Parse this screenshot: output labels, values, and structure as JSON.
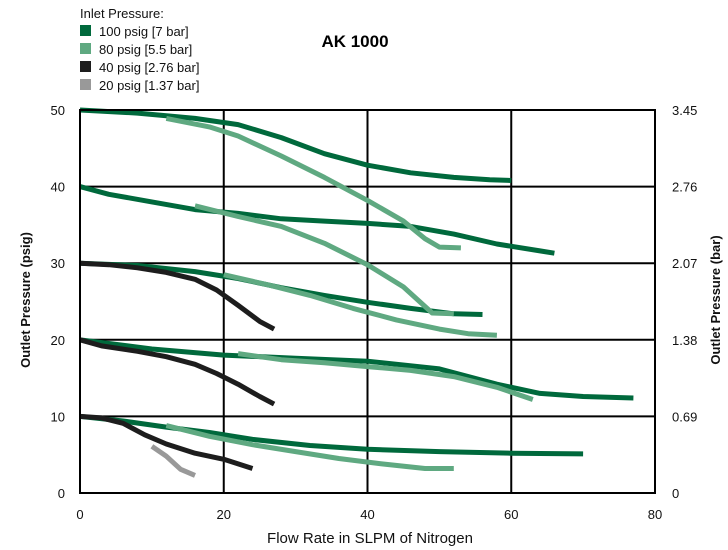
{
  "chart_data": {
    "type": "line",
    "title": "AK 1000",
    "xlabel": "Flow Rate in SLPM of Nitrogen",
    "ylabel": "Outlet Pressure (psig)",
    "y2label": "Outlet Pressure (bar)",
    "xlim": [
      0,
      80
    ],
    "ylim": [
      0,
      50
    ],
    "x_ticks": [
      "0",
      "20",
      "40",
      "60",
      "80"
    ],
    "y_ticks": [
      "0",
      "10",
      "20",
      "30",
      "40",
      "50"
    ],
    "y2_ticks": [
      "0",
      "0.69",
      "1.38",
      "2.07",
      "2.76",
      "3.45"
    ],
    "grid": true,
    "legend_title": "Inlet Pressure:",
    "legend_position": "top-left",
    "series": [
      {
        "name": "100 psig [7 bar]",
        "color": "#00693c",
        "curves": [
          {
            "x": [
              0,
              8,
              16,
              22,
              28,
              34,
              40,
              46,
              52,
              57,
              60
            ],
            "y": [
              50,
              49.6,
              48.9,
              48.1,
              46.4,
              44.3,
              42.8,
              41.8,
              41.2,
              40.9,
              40.8
            ]
          },
          {
            "x": [
              0,
              4,
              10,
              16,
              22,
              28,
              34,
              40,
              46,
              52,
              58,
              64,
              66
            ],
            "y": [
              40,
              39,
              38,
              37,
              36.5,
              35.8,
              35.5,
              35.2,
              34.8,
              33.8,
              32.5,
              31.6,
              31.3
            ]
          },
          {
            "x": [
              0,
              8,
              16,
              22,
              28,
              34,
              40,
              46,
              52,
              56
            ],
            "y": [
              30,
              29.7,
              28.9,
              28,
              26.8,
              25.8,
              24.9,
              24.1,
              23.4,
              23.3
            ]
          },
          {
            "x": [
              0,
              10,
              20,
              30,
              40,
              50,
              58,
              64,
              70,
              77
            ],
            "y": [
              20,
              18.8,
              18,
              17.6,
              17.2,
              16.2,
              14.2,
              13,
              12.6,
              12.4
            ]
          },
          {
            "x": [
              0,
              6,
              12,
              18,
              24,
              32,
              40,
              50,
              60,
              70
            ],
            "y": [
              10,
              9.4,
              8.6,
              7.9,
              7,
              6.2,
              5.7,
              5.4,
              5.2,
              5.1
            ]
          }
        ]
      },
      {
        "name": "80 psig [5.5 bar]",
        "color": "#5fa981",
        "curves": [
          {
            "x": [
              12,
              18,
              22,
              28,
              34,
              40,
              45,
              48,
              50,
              53
            ],
            "y": [
              48.9,
              47.8,
              46.6,
              44,
              41.2,
              38.2,
              35.5,
              33.2,
              32.1,
              32
            ]
          },
          {
            "x": [
              16,
              22,
              28,
              34,
              40,
              45,
              49,
              52
            ],
            "y": [
              37.5,
              36.1,
              34.8,
              32.6,
              29.8,
              26.9,
              23.5,
              23.4
            ]
          },
          {
            "x": [
              20,
              26,
              32,
              38,
              44,
              50,
              54,
              58
            ],
            "y": [
              28.5,
              27.2,
              25.8,
              24.1,
              22.6,
              21.4,
              20.8,
              20.6
            ]
          },
          {
            "x": [
              22,
              28,
              34,
              40,
              46,
              52,
              58,
              63
            ],
            "y": [
              18.2,
              17.4,
              17,
              16.5,
              16,
              15.2,
              13.8,
              12.2
            ]
          },
          {
            "x": [
              12,
              18,
              24,
              30,
              36,
              42,
              48,
              52
            ],
            "y": [
              8.8,
              7.4,
              6.3,
              5.4,
              4.5,
              3.8,
              3.2,
              3.2
            ]
          }
        ]
      },
      {
        "name": "40 psig [2.76 bar]",
        "color": "#1d1d1d",
        "curves": [
          {
            "x": [
              0,
              4,
              8,
              12,
              16,
              19,
              22,
              25,
              27
            ],
            "y": [
              30,
              29.8,
              29.4,
              28.8,
              27.9,
              26.5,
              24.5,
              22.4,
              21.4
            ]
          },
          {
            "x": [
              0,
              3,
              8,
              12,
              16,
              19,
              22,
              25,
              27
            ],
            "y": [
              20,
              19.2,
              18.5,
              17.8,
              16.8,
              15.6,
              14.2,
              12.6,
              11.6
            ]
          },
          {
            "x": [
              0,
              3,
              6,
              9,
              12,
              16,
              20,
              24
            ],
            "y": [
              10,
              9.8,
              9.1,
              7.6,
              6.4,
              5.2,
              4.4,
              3.2
            ]
          }
        ]
      },
      {
        "name": "20 psig [1.37 bar]",
        "color": "#999999",
        "curves": [
          {
            "x": [
              10,
              12,
              14,
              16
            ],
            "y": [
              6.1,
              4.8,
              3.1,
              2.3
            ]
          }
        ]
      }
    ]
  }
}
